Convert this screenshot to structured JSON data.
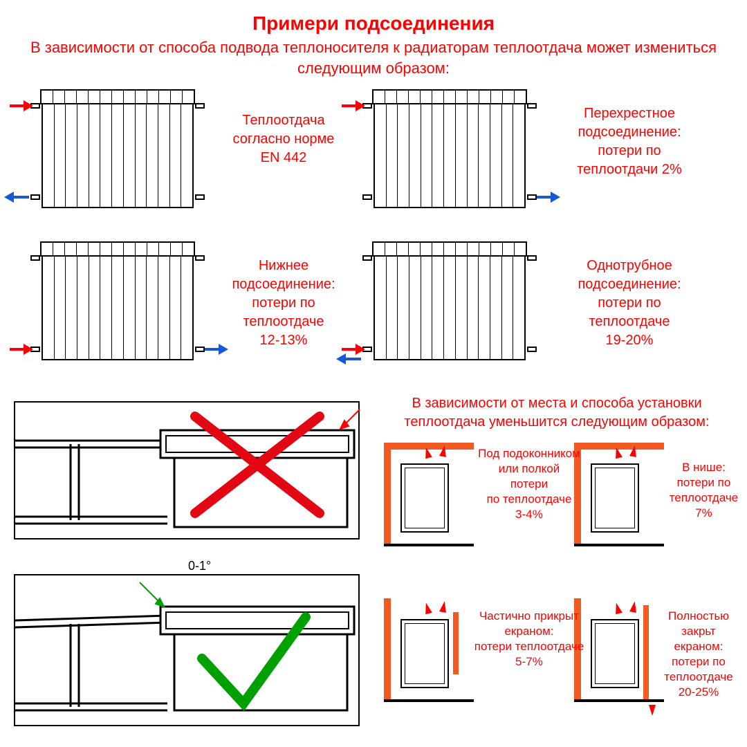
{
  "colors": {
    "text": "#ff0000",
    "hot_arrow": "#ff0000",
    "cold_arrow": "#1858d6",
    "wrong_x": "#e30613",
    "right_check": "#00a000",
    "niche_wall": "#f15a22",
    "black": "#000000",
    "bg": "#ffffff"
  },
  "title": "Примери подсоединения",
  "subtitle": "В зависимости от способа подвода теплоносителя к радиаторам теплоотдача\nможет измениться следующим образом:",
  "radiator": {
    "columns": 13
  },
  "connections": [
    {
      "id": "diagonal-standard",
      "caption": "Теплоотдача\nсогласно норме\nEN 442",
      "in": {
        "side": "left",
        "level": "top",
        "color": "hot"
      },
      "out": {
        "side": "left",
        "level": "bottom",
        "color": "cold"
      }
    },
    {
      "id": "cross",
      "caption": "Перехрестное\nподсоединение:\nпотери по\nтеплоотдачи 2%",
      "in": {
        "side": "left",
        "level": "top",
        "color": "hot"
      },
      "out": {
        "side": "right",
        "level": "bottom",
        "color": "cold"
      }
    },
    {
      "id": "bottom",
      "caption": "Нижнее\nподсоединение:\nпотери по\nтеплоотдаче\n12-13%",
      "in": {
        "side": "left",
        "level": "bottom",
        "color": "hot"
      },
      "out": {
        "side": "right",
        "level": "bottom",
        "color": "cold"
      }
    },
    {
      "id": "single-pipe",
      "caption": "Однотрубное\nподсоединение:\nпотери по\nтеплоотдаче\n19-20%",
      "in": {
        "side": "left",
        "level": "bottom",
        "color": "hot"
      },
      "out": {
        "side": "left",
        "level": "bottom",
        "color": "cold",
        "offset": "below"
      }
    }
  ],
  "install_title": "В зависимости от места и способа установки\nтеплоотдача уменьшится следующим образом:",
  "wrong_angle_label": "0-1°",
  "niches": [
    {
      "id": "sill",
      "caption": "Под подоконником\nили полкой\nпотери\nпо теплоотдаче\n3-4%",
      "top_wall": true,
      "screen": "none"
    },
    {
      "id": "niche",
      "caption": "В нише:\nпотери по\nтеплоотдаче 7%",
      "top_wall": true,
      "screen": "none"
    },
    {
      "id": "partial",
      "caption": "Частично прикрыт\nекраном:\nпотери теплоотдаче\n5-7%",
      "top_wall": false,
      "screen": "partial"
    },
    {
      "id": "full",
      "caption": "Полностью закрьт\nекраном:\nпотери по теплоотдаче\n20-25%",
      "top_wall": false,
      "screen": "full"
    }
  ]
}
